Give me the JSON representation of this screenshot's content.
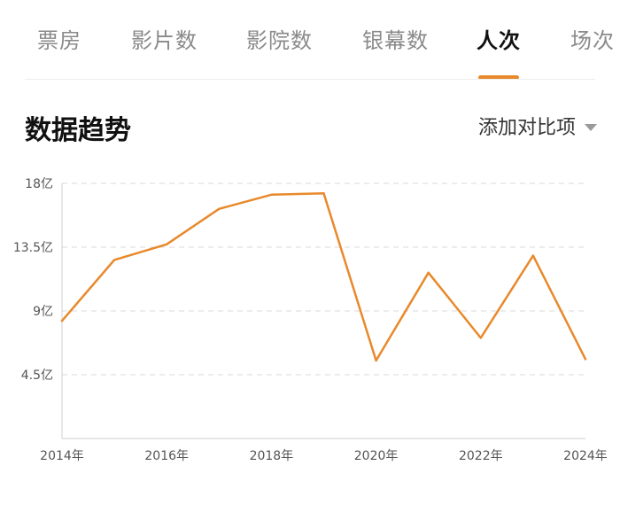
{
  "tabs": [
    {
      "label": "票房",
      "active": false
    },
    {
      "label": "影片数",
      "active": false
    },
    {
      "label": "影院数",
      "active": false
    },
    {
      "label": "银幕数",
      "active": false
    },
    {
      "label": "人次",
      "active": true
    },
    {
      "label": "场次",
      "active": false
    }
  ],
  "section": {
    "title": "数据趋势",
    "compare_label": "添加对比项"
  },
  "colors": {
    "accent": "#e8892b",
    "grid": "#d9d9d9",
    "axis_text": "#555555"
  },
  "chart_data": {
    "type": "line",
    "title": "",
    "xlabel": "",
    "ylabel": "",
    "x": [
      2014,
      2015,
      2016,
      2017,
      2018,
      2019,
      2020,
      2021,
      2022,
      2023,
      2024
    ],
    "x_tick_labels": [
      "2014年",
      "2016年",
      "2018年",
      "2020年",
      "2022年",
      "2024年"
    ],
    "y_tick_values": [
      4.5,
      9,
      13.5,
      18
    ],
    "y_tick_labels": [
      "4.5亿",
      "9亿",
      "13.5亿",
      "18亿"
    ],
    "ylim": [
      0,
      18
    ],
    "series": [
      {
        "values": [
          8.3,
          12.6,
          13.7,
          16.2,
          17.2,
          17.3,
          5.5,
          11.7,
          7.1,
          12.9,
          5.6
        ]
      }
    ],
    "grid": "horizontal dashed",
    "legend": "none"
  }
}
